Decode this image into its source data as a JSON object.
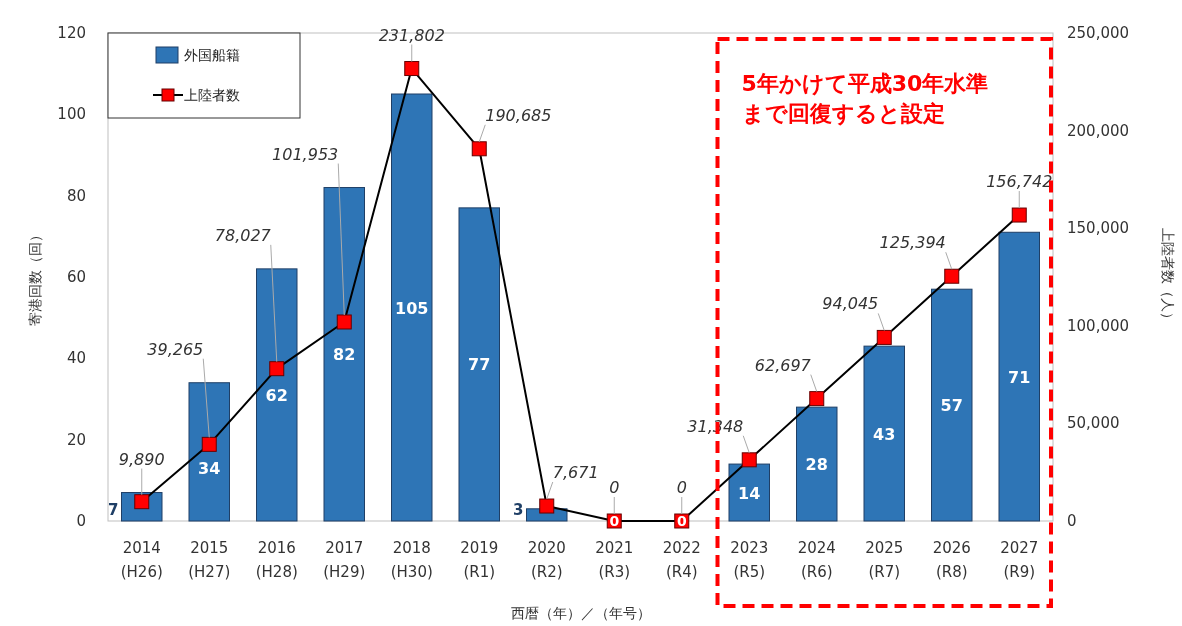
{
  "chart_data": {
    "type": "bar",
    "categories": [
      "2014\n(H26)",
      "2015\n(H27)",
      "2016\n(H28)",
      "2017\n(H29)",
      "2018\n(H30)",
      "2019\n(R1)",
      "2020\n(R2)",
      "2021\n(R3)",
      "2022\n(R4)",
      "2023\n(R5)",
      "2024\n(R6)",
      "2025\n(R7)",
      "2026\n(R8)",
      "2027\n(R9)"
    ],
    "series": [
      {
        "name": "外国船籍",
        "type": "bar",
        "color": "#2e75b6",
        "values": [
          7,
          34,
          62,
          82,
          105,
          77,
          3,
          0,
          0,
          14,
          28,
          43,
          57,
          71
        ],
        "data_labels": true
      },
      {
        "name": "上陸者数",
        "type": "line",
        "axis": "y2",
        "color": "#000000",
        "marker": "square",
        "values": [
          9890,
          39265,
          78027,
          101953,
          231802,
          190685,
          7671,
          0,
          0,
          31348,
          62697,
          94045,
          125394,
          156742
        ],
        "value_labels": [
          "9,890",
          "39,265",
          "78,027",
          "101,953",
          "231,802",
          "190,685",
          "7,671",
          "0",
          "0",
          "31,348",
          "62,697",
          "94,045",
          "125,394",
          "156,742"
        ]
      }
    ],
    "xlabel": "西暦（年）／（年号）",
    "ylabel": "寄港回数（回）",
    "y2label": "上陸者数（人）",
    "ylim": [
      0,
      120
    ],
    "yticks": [
      0,
      20,
      40,
      60,
      80,
      100,
      120
    ],
    "y2lim": [
      0,
      250000
    ],
    "y2ticks": [
      0,
      {
        "value": 50000,
        "label": "50,000"
      },
      {
        "value": 100000,
        "label": "100,000"
      },
      {
        "value": 150000,
        "label": "150,000"
      },
      {
        "value": 200000,
        "label": "200,000"
      },
      {
        "value": 250000,
        "label": "250,000"
      }
    ],
    "legend": "top left",
    "grid": false,
    "annotations": [
      "5年かけて平成30年水準まで回復すると設定"
    ]
  }
}
